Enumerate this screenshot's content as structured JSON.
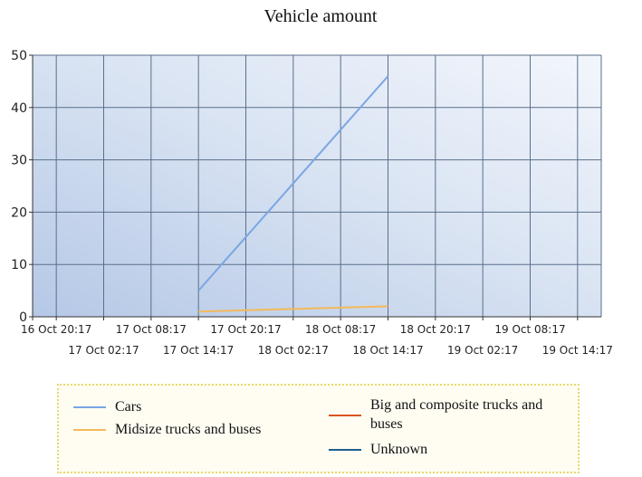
{
  "chart_data": {
    "type": "line",
    "title": "Vehicle amount",
    "xlabel": "",
    "ylabel": "",
    "ylim": [
      0,
      50
    ],
    "yticks": [
      0,
      10,
      20,
      30,
      40,
      50
    ],
    "xlim": [
      "16 Oct 17:17",
      "19 Oct 17:17"
    ],
    "x_tick_labels": [
      "16 Oct 20:17",
      "17 Oct 02:17",
      "17 Oct 08:17",
      "17 Oct 14:17",
      "17 Oct 20:17",
      "18 Oct 02:17",
      "18 Oct 08:17",
      "18 Oct 14:17",
      "18 Oct 20:17",
      "19 Oct 02:17",
      "19 Oct 08:17",
      "19 Oct 14:17"
    ],
    "grid": true,
    "legend_position": "bottom",
    "series": [
      {
        "name": "Cars",
        "color": "#7aa6e4",
        "x": [
          "17 Oct 14:17",
          "18 Oct 14:17"
        ],
        "values": [
          5,
          46
        ]
      },
      {
        "name": "Midsize trucks and buses",
        "color": "#f4b95a",
        "x": [
          "17 Oct 14:17",
          "18 Oct 14:17"
        ],
        "values": [
          1,
          2
        ]
      },
      {
        "name": "Big and composite trucks and buses",
        "color": "#d9541e",
        "x": [],
        "values": []
      },
      {
        "name": "Unknown",
        "color": "#1f5f8f",
        "x": [],
        "values": []
      }
    ]
  }
}
